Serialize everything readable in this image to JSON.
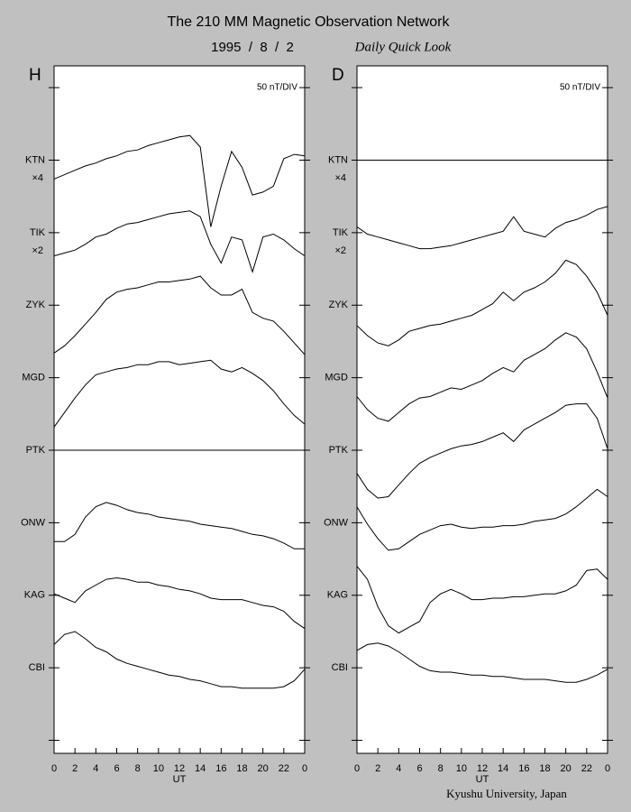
{
  "header": {
    "title": "The 210 MM Magnetic Observation Network",
    "date": "1995  /  8  /  2",
    "label": "Daily Quick Look"
  },
  "footer": "Kyushu University, Japan",
  "chart_data": [
    {
      "type": "line",
      "panel": "H",
      "annotation": "50 nT/DIV",
      "x_label": "UT",
      "x": [
        0,
        1,
        2,
        3,
        4,
        5,
        6,
        7,
        8,
        9,
        10,
        11,
        12,
        13,
        14,
        15,
        16,
        17,
        18,
        19,
        20,
        21,
        22,
        23,
        24
      ],
      "xlim": [
        0,
        24
      ],
      "xticks": [
        0,
        2,
        4,
        6,
        8,
        10,
        12,
        14,
        16,
        18,
        20,
        22,
        {
          "value": 24,
          "label": "0"
        }
      ],
      "ylim": [
        -59,
        415
      ],
      "yticks": [
        {
          "value": 400,
          "label": null
        },
        {
          "value": 350,
          "label": "KTN"
        },
        {
          "value": 300,
          "label": "TIK"
        },
        {
          "value": 250,
          "label": "ZYK"
        },
        {
          "value": 200,
          "label": "MGD"
        },
        {
          "value": 150,
          "label": "PTK"
        },
        {
          "value": 100,
          "label": "ONW"
        },
        {
          "value": 50,
          "label": "KAG"
        },
        {
          "value": 0,
          "label": "CBI"
        },
        {
          "value": -50,
          "label": null
        }
      ],
      "series": [
        {
          "color": "#000000",
          "scale": "×4",
          "values": [
            337,
            340,
            343,
            346,
            348,
            351,
            353,
            356,
            357,
            360,
            362,
            364,
            366,
            367,
            359,
            304,
            332,
            356,
            345,
            326,
            328,
            332,
            351,
            354,
            353
          ]
        },
        {
          "color": "#000000",
          "scale": "×2",
          "values": [
            284,
            286,
            288,
            292,
            297,
            299,
            303,
            306,
            307,
            309,
            311,
            313,
            314,
            315,
            311,
            292,
            279,
            297,
            295,
            273,
            297,
            299,
            295,
            289,
            284
          ]
        },
        {
          "color": "#000000",
          "values": [
            217,
            222,
            229,
            237,
            245,
            254,
            259,
            261,
            262,
            264,
            266,
            266,
            267,
            268,
            270,
            262,
            257,
            257,
            261,
            245,
            241,
            239,
            232,
            224,
            216
          ]
        },
        {
          "color": "#000000",
          "values": [
            166,
            176,
            186,
            195,
            202,
            204,
            206,
            207,
            209,
            209,
            211,
            211,
            209,
            210,
            211,
            212,
            206,
            204,
            207,
            203,
            198,
            191,
            182,
            174,
            168
          ]
        },
        {
          "color": "#000000",
          "values": [
            150,
            150,
            150,
            150,
            150,
            150,
            150,
            150,
            150,
            150,
            150,
            150,
            150,
            150,
            150,
            150,
            150,
            150,
            150,
            150,
            150,
            150,
            150,
            150,
            150
          ]
        },
        {
          "color": "#000000",
          "values": [
            87,
            87,
            92,
            104,
            111,
            114,
            112,
            109,
            107,
            106,
            104,
            103,
            102,
            101,
            99,
            98,
            97,
            96,
            94,
            92,
            91,
            89,
            86,
            82,
            82
          ]
        },
        {
          "color": "#000000",
          "values": [
            51,
            48,
            45,
            53,
            57,
            61,
            62,
            61,
            59,
            59,
            57,
            56,
            54,
            53,
            51,
            48,
            47,
            47,
            47,
            45,
            43,
            42,
            39,
            32,
            27
          ]
        },
        {
          "color": "#000000",
          "values": [
            16,
            23,
            25,
            20,
            14,
            11,
            6,
            3,
            1,
            -1,
            -3,
            -5,
            -6,
            -8,
            -9,
            -11,
            -13,
            -13,
            -14,
            -14,
            -14,
            -14,
            -13,
            -9,
            -1
          ]
        }
      ]
    },
    {
      "type": "line",
      "panel": "D",
      "annotation": "50 nT/DIV",
      "x_label": "UT",
      "x": [
        0,
        1,
        2,
        3,
        4,
        5,
        6,
        7,
        8,
        9,
        10,
        11,
        12,
        13,
        14,
        15,
        16,
        17,
        18,
        19,
        20,
        21,
        22,
        23,
        24
      ],
      "xlim": [
        0,
        24
      ],
      "xticks": [
        0,
        2,
        4,
        6,
        8,
        10,
        12,
        14,
        16,
        18,
        20,
        22,
        {
          "value": 24,
          "label": "0"
        }
      ],
      "ylim": [
        -59,
        415
      ],
      "yticks": [
        {
          "value": 400,
          "label": null
        },
        {
          "value": 350,
          "label": "KTN"
        },
        {
          "value": 300,
          "label": "TIK"
        },
        {
          "value": 250,
          "label": "ZYK"
        },
        {
          "value": 200,
          "label": "MGD"
        },
        {
          "value": 150,
          "label": "PTK"
        },
        {
          "value": 100,
          "label": "ONW"
        },
        {
          "value": 50,
          "label": "KAG"
        },
        {
          "value": 0,
          "label": "CBI"
        },
        {
          "value": -50,
          "label": null
        }
      ],
      "series": [
        {
          "color": "#000000",
          "scale": "×4",
          "values": [
            350,
            350,
            350,
            350,
            350,
            350,
            350,
            350,
            350,
            350,
            350,
            350,
            350,
            350,
            350,
            350,
            350,
            350,
            350,
            350,
            350,
            350,
            350,
            350,
            350
          ]
        },
        {
          "color": "#000000",
          "scale": "×2",
          "values": [
            304,
            299,
            297,
            295,
            293,
            291,
            289,
            289,
            290,
            291,
            293,
            295,
            297,
            299,
            301,
            311,
            301,
            299,
            297,
            303,
            307,
            309,
            312,
            316,
            318
          ]
        },
        {
          "color": "#000000",
          "values": [
            236,
            229,
            224,
            222,
            226,
            232,
            234,
            236,
            237,
            239,
            241,
            243,
            247,
            251,
            259,
            253,
            259,
            262,
            266,
            272,
            281,
            278,
            270,
            259,
            243
          ]
        },
        {
          "color": "#000000",
          "values": [
            187,
            178,
            172,
            170,
            176,
            182,
            186,
            187,
            190,
            193,
            192,
            195,
            198,
            203,
            207,
            204,
            212,
            216,
            220,
            226,
            231,
            228,
            220,
            204,
            186
          ]
        },
        {
          "color": "#000000",
          "values": [
            134,
            123,
            117,
            118,
            126,
            134,
            141,
            145,
            148,
            151,
            153,
            154,
            156,
            159,
            162,
            156,
            164,
            168,
            172,
            176,
            181,
            182,
            182,
            172,
            151
          ]
        },
        {
          "color": "#000000",
          "values": [
            111,
            99,
            89,
            81,
            82,
            87,
            92,
            95,
            98,
            99,
            97,
            96,
            97,
            97,
            98,
            98,
            99,
            101,
            102,
            103,
            106,
            111,
            117,
            123,
            118
          ]
        },
        {
          "color": "#000000",
          "values": [
            70,
            61,
            42,
            29,
            24,
            28,
            32,
            45,
            51,
            54,
            51,
            47,
            47,
            48,
            48,
            49,
            49,
            50,
            51,
            51,
            53,
            57,
            67,
            68,
            61
          ]
        },
        {
          "color": "#000000",
          "values": [
            12,
            16,
            17,
            15,
            11,
            6,
            1,
            -2,
            -3,
            -3,
            -4,
            -5,
            -5,
            -6,
            -6,
            -7,
            -8,
            -8,
            -8,
            -9,
            -10,
            -10,
            -8,
            -5,
            -1
          ]
        }
      ]
    }
  ]
}
